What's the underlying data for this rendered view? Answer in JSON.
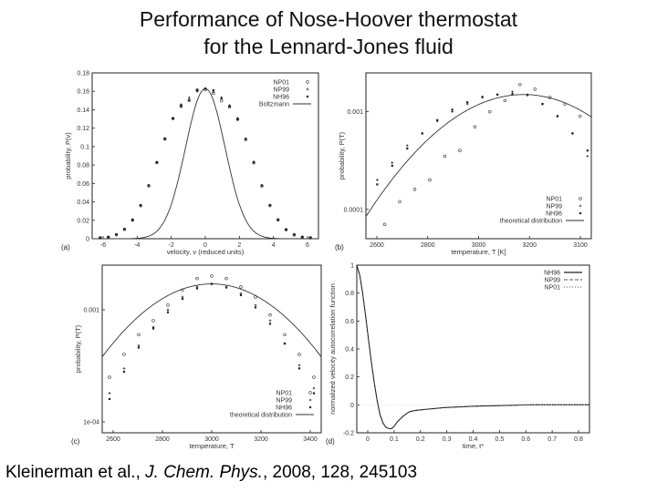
{
  "header": {
    "title_line1": "Performance of Nose-Hoover thermostat",
    "title_line2": "for the Lennard-Jones fluid"
  },
  "citation": {
    "authors": "Kleinerman et al., ",
    "journal": "J. Chem. Phys.",
    "rest": ", 2008, 128, 245103"
  },
  "chart_data": [
    {
      "panel": "(a)",
      "type": "scatter",
      "xlabel": "velocity, v (reduced units)",
      "ylabel": "probability, P(v)",
      "xlim": [
        -7,
        7
      ],
      "ylim": [
        0,
        0.18
      ],
      "xticks": [
        "-6",
        "-4",
        "-2",
        "0",
        "2",
        "4",
        "6"
      ],
      "yticks": [
        "0",
        "0.02",
        "0.04",
        "0.06",
        "0.08",
        "0.1",
        "0.12",
        "0.14",
        "0.16",
        "0.18"
      ],
      "legend": [
        "NP01",
        "NP99",
        "NH96",
        "Boltzmann"
      ],
      "curve": {
        "name": "Boltzmann",
        "amplitude": 0.163,
        "mean": 0,
        "sigma": 2.45
      },
      "series": [
        {
          "name": "NP01",
          "x": [
            -6.5,
            -6,
            -5.5,
            -5,
            -4.5,
            -4,
            -3.5,
            -3,
            -2.5,
            -2,
            -1.5,
            -1,
            -0.5,
            0,
            0.5,
            1,
            1.5,
            2,
            2.5,
            3,
            3.5,
            4,
            4.5,
            5,
            5.5,
            6,
            6.5
          ],
          "y": [
            0.001,
            0.0016,
            0.0043,
            0.0101,
            0.0202,
            0.0358,
            0.0574,
            0.0826,
            0.1082,
            0.1304,
            0.1436,
            0.1499,
            0.1615,
            0.1618,
            0.1578,
            0.1497,
            0.1432,
            0.1296,
            0.1076,
            0.0823,
            0.0571,
            0.036,
            0.0207,
            0.0097,
            0.0041,
            0.0016,
            0.001
          ]
        },
        {
          "name": "NP99",
          "x": [
            -6.5,
            -6,
            -5.5,
            -5,
            -4.5,
            -4,
            -3.5,
            -3,
            -2.5,
            -2,
            -1.5,
            -1,
            -0.5,
            0,
            0.5,
            1,
            1.5,
            2,
            2.5,
            3,
            3.5,
            4,
            4.5,
            5,
            5.5,
            6,
            6.5
          ],
          "y": [
            0.0009,
            0.0017,
            0.0048,
            0.0107,
            0.021,
            0.0366,
            0.058,
            0.0832,
            0.1089,
            0.1309,
            0.1457,
            0.1532,
            0.1599,
            0.1628,
            0.1592,
            0.1532,
            0.1447,
            0.1308,
            0.1085,
            0.0827,
            0.058,
            0.0364,
            0.0204,
            0.0103,
            0.0045,
            0.0019,
            0.0008
          ]
        },
        {
          "name": "NH96",
          "x": [
            -6.5,
            -6,
            -5.5,
            -5,
            -4.5,
            -4,
            -3.5,
            -3,
            -2.5,
            -2,
            -1.5,
            -1,
            -0.5,
            0,
            0.5,
            1,
            1.5,
            2,
            2.5,
            3,
            3.5,
            4,
            4.5,
            5,
            5.5,
            6,
            6.5
          ],
          "y": [
            0.0009,
            0.0019,
            0.0048,
            0.0104,
            0.0201,
            0.0363,
            0.0578,
            0.0829,
            0.1084,
            0.1307,
            0.1441,
            0.1507,
            0.1612,
            0.1631,
            0.1611,
            0.1526,
            0.1437,
            0.1298,
            0.1084,
            0.0834,
            0.0579,
            0.0365,
            0.0199,
            0.0101,
            0.0046,
            0.0017,
            0.0009
          ]
        }
      ]
    },
    {
      "panel": "(b)",
      "type": "scatter",
      "xlabel": "temperature, T [K]",
      "ylabel": "probability, P(T)",
      "xlim": [
        2550,
        3150
      ],
      "ylim_log": [
        5e-05,
        0.0025
      ],
      "xticks": [
        "2600",
        "2800",
        "3000",
        "3200",
        "3100"
      ],
      "yticks": [
        "0.0001",
        "0.001"
      ],
      "legend": [
        "NP01",
        "NP99",
        "NH96",
        "theoretical distribution"
      ],
      "curve": {
        "name": "theoretical distribution",
        "peak_x": 2970,
        "peak_y": 0.0015,
        "halfwidth": 175
      },
      "series": [
        {
          "name": "NP01",
          "x": [
            2600,
            2640,
            2680,
            2720,
            2760,
            2800,
            2840,
            2880,
            2920,
            2960,
            3000,
            3040,
            3080,
            3120
          ],
          "y": [
            7e-05,
            0.00012,
            0.00016,
            0.0002,
            0.00035,
            0.0004,
            0.0007,
            0.001,
            0.0013,
            0.0019,
            0.0017,
            0.0014,
            0.0012,
            0.0009
          ]
        },
        {
          "name": "NP99",
          "x": [
            2580,
            2620,
            2660,
            2700,
            2740,
            2780,
            2820,
            2860,
            2900,
            2940,
            2980,
            3020,
            3060,
            3100,
            3140
          ],
          "y": [
            0.0002,
            0.0003,
            0.00045,
            0.0006,
            0.0008,
            0.001,
            0.0012,
            0.0014,
            0.0015,
            0.0016,
            0.0015,
            0.0012,
            0.0009,
            0.0006,
            0.00035
          ]
        },
        {
          "name": "NH96",
          "x": [
            2580,
            2620,
            2660,
            2700,
            2740,
            2780,
            2820,
            2860,
            2900,
            2940,
            2980,
            3020,
            3060,
            3100,
            3140
          ],
          "y": [
            0.00018,
            0.00028,
            0.00042,
            0.0006,
            0.00082,
            0.00105,
            0.00125,
            0.00142,
            0.0015,
            0.00152,
            0.00148,
            0.0012,
            0.0009,
            0.0006,
            0.0004
          ]
        }
      ]
    },
    {
      "panel": "(c)",
      "type": "scatter",
      "xlabel": "temperature, T",
      "ylabel": "probability, P(T)",
      "xlim": [
        2550,
        3450
      ],
      "ylim_log": [
        8e-05,
        0.0025
      ],
      "xticks": [
        "2600",
        "2800",
        "3000",
        "3200",
        "3400"
      ],
      "yticks": [
        "1e-04",
        "0.001"
      ],
      "legend": [
        "NP01",
        "NP99",
        "NH96",
        "theoretical distribution"
      ],
      "curve": {
        "name": "theoretical distribution",
        "peak_x": 3000,
        "peak_y": 0.0017,
        "halfwidth": 260
      },
      "series": [
        {
          "name": "NP01",
          "x": [
            2580,
            2640,
            2700,
            2760,
            2820,
            2880,
            2940,
            3000,
            3060,
            3120,
            3180,
            3240,
            3300,
            3360,
            3420
          ],
          "y": [
            0.00025,
            0.0004,
            0.0006,
            0.0008,
            0.0011,
            0.0015,
            0.0019,
            0.002,
            0.0019,
            0.0016,
            0.0013,
            0.0009,
            0.0006,
            0.0004,
            0.00025
          ]
        },
        {
          "name": "NP99",
          "x": [
            2580,
            2640,
            2700,
            2760,
            2820,
            2880,
            2940,
            3000,
            3060,
            3120,
            3180,
            3240,
            3300,
            3360,
            3420
          ],
          "y": [
            0.00018,
            0.0003,
            0.00048,
            0.0007,
            0.001,
            0.0013,
            0.0016,
            0.0017,
            0.0016,
            0.0014,
            0.0011,
            0.0008,
            0.0005,
            0.00032,
            0.0002
          ]
        },
        {
          "name": "NH96",
          "x": [
            2580,
            2640,
            2700,
            2760,
            2820,
            2880,
            2940,
            3000,
            3060,
            3120,
            3180,
            3240,
            3300,
            3360,
            3420
          ],
          "y": [
            0.00016,
            0.00028,
            0.00046,
            0.00068,
            0.00095,
            0.00125,
            0.00155,
            0.0017,
            0.00158,
            0.00135,
            0.00105,
            0.00075,
            0.0005,
            0.0003,
            0.00018
          ]
        }
      ]
    },
    {
      "panel": "(d)",
      "type": "line",
      "xlabel": "time, t*",
      "ylabel": "normalized velocity autocorrelation function",
      "xlim": [
        0,
        0.8
      ],
      "ylim": [
        -0.2,
        1.0
      ],
      "xticks": [
        "0",
        "0.1",
        "0.2",
        "0.3",
        "0.4",
        "0.5",
        "0.6",
        "0.7",
        "0.8"
      ],
      "yticks": [
        "-0.2",
        "0",
        "0.2",
        "0.4",
        "0.6",
        "0.8",
        "1"
      ],
      "legend": [
        "NH96",
        "NP99",
        "NP01"
      ],
      "series": [
        {
          "name": "NH96",
          "x": [
            0,
            0.01,
            0.02,
            0.03,
            0.04,
            0.05,
            0.06,
            0.07,
            0.08,
            0.09,
            0.1,
            0.11,
            0.12,
            0.13,
            0.14,
            0.16,
            0.18,
            0.2,
            0.25,
            0.3,
            0.35,
            0.4,
            0.5,
            0.6,
            0.7,
            0.8
          ],
          "y": [
            1,
            0.93,
            0.8,
            0.64,
            0.47,
            0.31,
            0.16,
            0.03,
            -0.07,
            -0.13,
            -0.16,
            -0.17,
            -0.17,
            -0.15,
            -0.12,
            -0.08,
            -0.05,
            -0.04,
            -0.03,
            -0.02,
            -0.015,
            -0.01,
            -0.005,
            0.0,
            0.0,
            0.0
          ]
        },
        {
          "name": "NP99",
          "x": [
            0,
            0.01,
            0.02,
            0.03,
            0.04,
            0.05,
            0.06,
            0.07,
            0.08,
            0.09,
            0.1,
            0.11,
            0.12,
            0.13,
            0.14,
            0.16,
            0.18,
            0.2,
            0.25,
            0.3,
            0.35,
            0.4,
            0.5,
            0.6,
            0.7,
            0.8
          ],
          "y": [
            1,
            0.93,
            0.8,
            0.64,
            0.47,
            0.31,
            0.16,
            0.03,
            -0.07,
            -0.13,
            -0.16,
            -0.17,
            -0.17,
            -0.15,
            -0.12,
            -0.08,
            -0.05,
            -0.04,
            -0.03,
            -0.02,
            -0.015,
            -0.01,
            -0.005,
            0.0,
            0.0,
            0.0
          ]
        },
        {
          "name": "NP01",
          "x": [
            0,
            0.01,
            0.02,
            0.03,
            0.04,
            0.05,
            0.06,
            0.07,
            0.08,
            0.09,
            0.1,
            0.11,
            0.12,
            0.13,
            0.14,
            0.16,
            0.18,
            0.2,
            0.25,
            0.3,
            0.35,
            0.4,
            0.5,
            0.6,
            0.7,
            0.8
          ],
          "y": [
            1,
            0.93,
            0.8,
            0.64,
            0.47,
            0.31,
            0.16,
            0.03,
            -0.07,
            -0.13,
            -0.16,
            -0.17,
            -0.17,
            -0.15,
            -0.12,
            -0.08,
            -0.05,
            -0.04,
            -0.03,
            -0.02,
            -0.015,
            -0.01,
            -0.005,
            0.0,
            0.0,
            0.0
          ]
        }
      ]
    }
  ]
}
